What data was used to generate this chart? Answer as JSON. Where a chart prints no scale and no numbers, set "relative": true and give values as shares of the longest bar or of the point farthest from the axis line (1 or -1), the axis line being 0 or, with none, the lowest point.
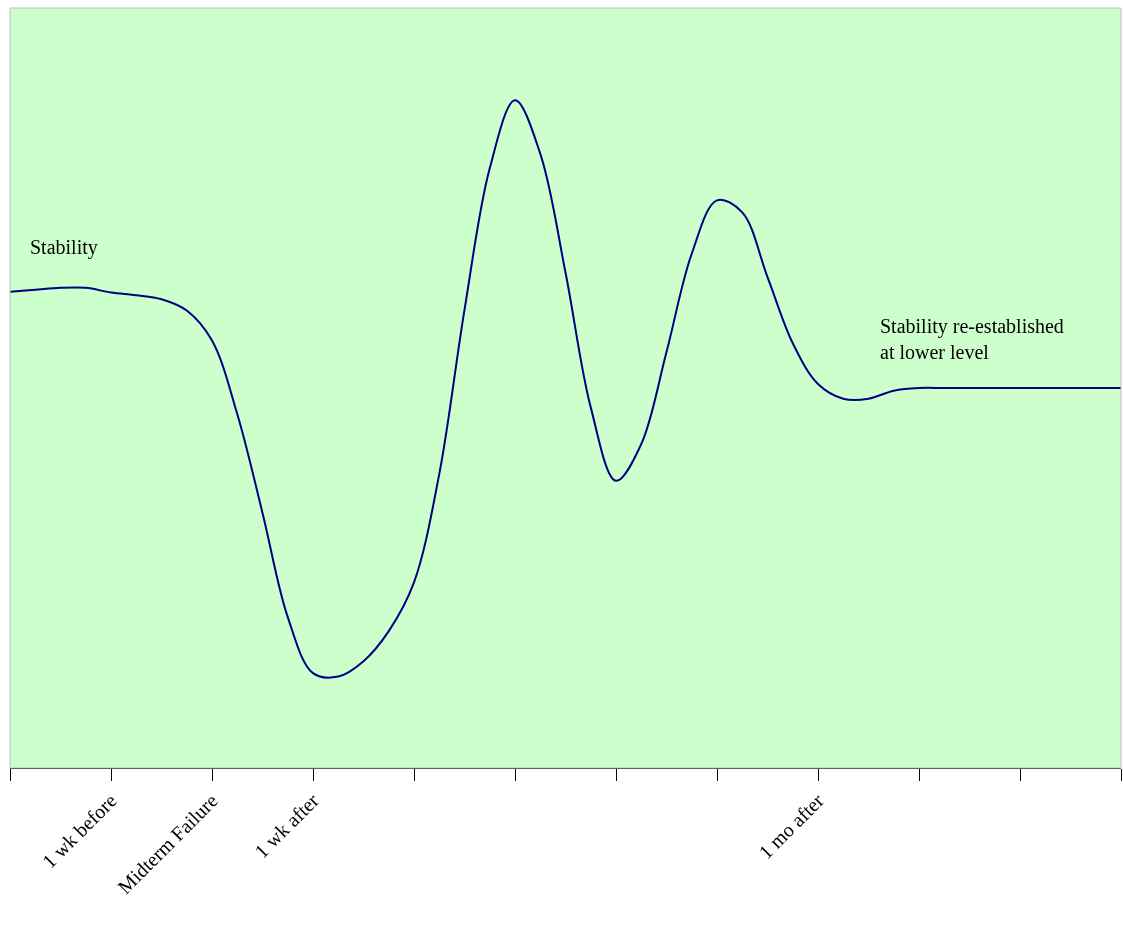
{
  "chart_data": {
    "type": "line",
    "relative": true,
    "categories": [
      null,
      null,
      null,
      null,
      "1 wk before",
      null,
      null,
      null,
      "Midterm Failure",
      null,
      null,
      null,
      "1 wk after",
      null,
      null,
      null,
      null,
      null,
      null,
      null,
      null,
      null,
      null,
      null,
      null,
      null,
      null,
      null,
      null,
      null,
      null,
      null,
      "1 mo after",
      null,
      null,
      null,
      null,
      null,
      null,
      null,
      null,
      null,
      null,
      null,
      null
    ],
    "series": [
      {
        "color": "#000080",
        "values": [
          0.713,
          0.716,
          0.719,
          0.719,
          0.712,
          0.708,
          0.702,
          0.685,
          0.64,
          0.53,
          0.382,
          0.226,
          0.142,
          0.137,
          0.16,
          0.205,
          0.278,
          0.44,
          0.686,
          0.898,
          1.0,
          0.92,
          0.742,
          0.54,
          0.43,
          0.485,
          0.623,
          0.77,
          0.85,
          0.832,
          0.735,
          0.636,
          0.575,
          0.553,
          0.553,
          0.565,
          0.569,
          0.569,
          0.569,
          0.569,
          0.569,
          0.569,
          0.569,
          0.569,
          0.569
        ]
      }
    ],
    "annotations": [
      "Stability",
      "Stability re-established\nat lower level"
    ]
  }
}
